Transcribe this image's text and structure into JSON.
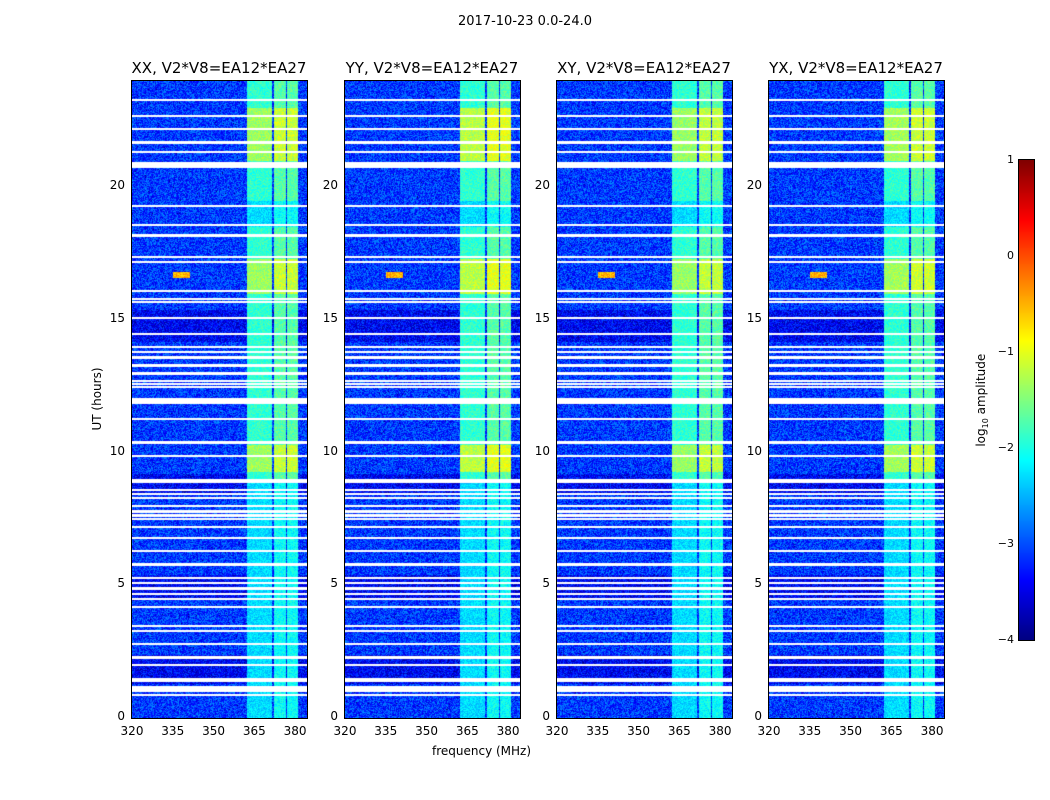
{
  "figure_title": "2017-10-23 0.0-24.0",
  "chart_data": [
    {
      "type": "heatmap",
      "title": "XX, V2*V8=EA12*EA27",
      "xlabel": "",
      "ylabel": "UT (hours)",
      "xlim": [
        320,
        384.4
      ],
      "ylim": [
        0,
        24
      ],
      "xticks": [
        "320",
        "335",
        "350",
        "365",
        "380"
      ],
      "yticks": [
        "0",
        "5",
        "10",
        "15",
        "20"
      ],
      "band_gain": 1.0
    },
    {
      "type": "heatmap",
      "title": "YY, V2*V8=EA12*EA27",
      "xlabel": "frequency (MHz)",
      "ylabel": "",
      "xlim": [
        320,
        384.4
      ],
      "ylim": [
        0,
        24
      ],
      "xticks": [
        "320",
        "335",
        "350",
        "365",
        "380"
      ],
      "yticks": [
        "0",
        "5",
        "10",
        "15",
        "20"
      ],
      "band_gain": 1.25
    },
    {
      "type": "heatmap",
      "title": "XY, V2*V8=EA12*EA27",
      "xlabel": "",
      "ylabel": "",
      "xlim": [
        320,
        384.4
      ],
      "ylim": [
        0,
        24
      ],
      "xticks": [
        "320",
        "335",
        "350",
        "365",
        "380"
      ],
      "yticks": [
        "0",
        "5",
        "10",
        "15",
        "20"
      ],
      "band_gain": 0.95
    },
    {
      "type": "heatmap",
      "title": "YX, V2*V8=EA12*EA27",
      "xlabel": "",
      "ylabel": "",
      "xlim": [
        320,
        384.4
      ],
      "ylim": [
        0,
        24
      ],
      "xticks": [
        "320",
        "335",
        "350",
        "365",
        "380"
      ],
      "yticks": [
        "0",
        "5",
        "10",
        "15",
        "20"
      ],
      "band_gain": 1.05
    }
  ],
  "shared": {
    "background_log_amp": -3.1,
    "rfi_band_mhz": [
      [
        362,
        367
      ],
      [
        367,
        371.5
      ],
      [
        372,
        376.5
      ],
      [
        377,
        381
      ]
    ],
    "flagged_ut_hours": [
      23.3,
      22.7,
      22.2,
      21.7,
      21.35,
      20.85,
      20.8,
      19.3,
      18.6,
      18.2,
      17.4,
      17.2,
      16.1,
      15.8,
      15.7,
      15.1,
      14.5,
      14.0,
      13.8,
      13.6,
      13.3,
      13.0,
      12.7,
      12.6,
      12.5,
      12.0,
      11.9,
      11.3,
      10.4,
      9.9,
      9.0,
      8.9,
      8.6,
      8.45,
      8.3,
      8.0,
      7.8,
      7.65,
      7.5,
      7.2,
      6.8,
      6.3,
      5.8,
      5.3,
      5.1,
      4.9,
      4.7,
      4.5,
      4.2,
      3.5,
      3.3,
      2.8,
      2.3,
      2.0,
      1.5,
      1.4,
      1.15,
      1.05,
      0.9
    ],
    "bright_periods_ut": [
      [
        21.0,
        23.0
      ],
      [
        16.0,
        17.3
      ],
      [
        9.3,
        10.3
      ]
    ]
  },
  "colorbar": {
    "label": "log10 amplitude",
    "label_main": "log",
    "label_sub": "10",
    "label_rest": " amplitude",
    "ticks": [
      "1",
      "0",
      "−1",
      "−2",
      "−3",
      "−4"
    ],
    "range": [
      -4,
      1
    ],
    "colormap": "jet"
  }
}
